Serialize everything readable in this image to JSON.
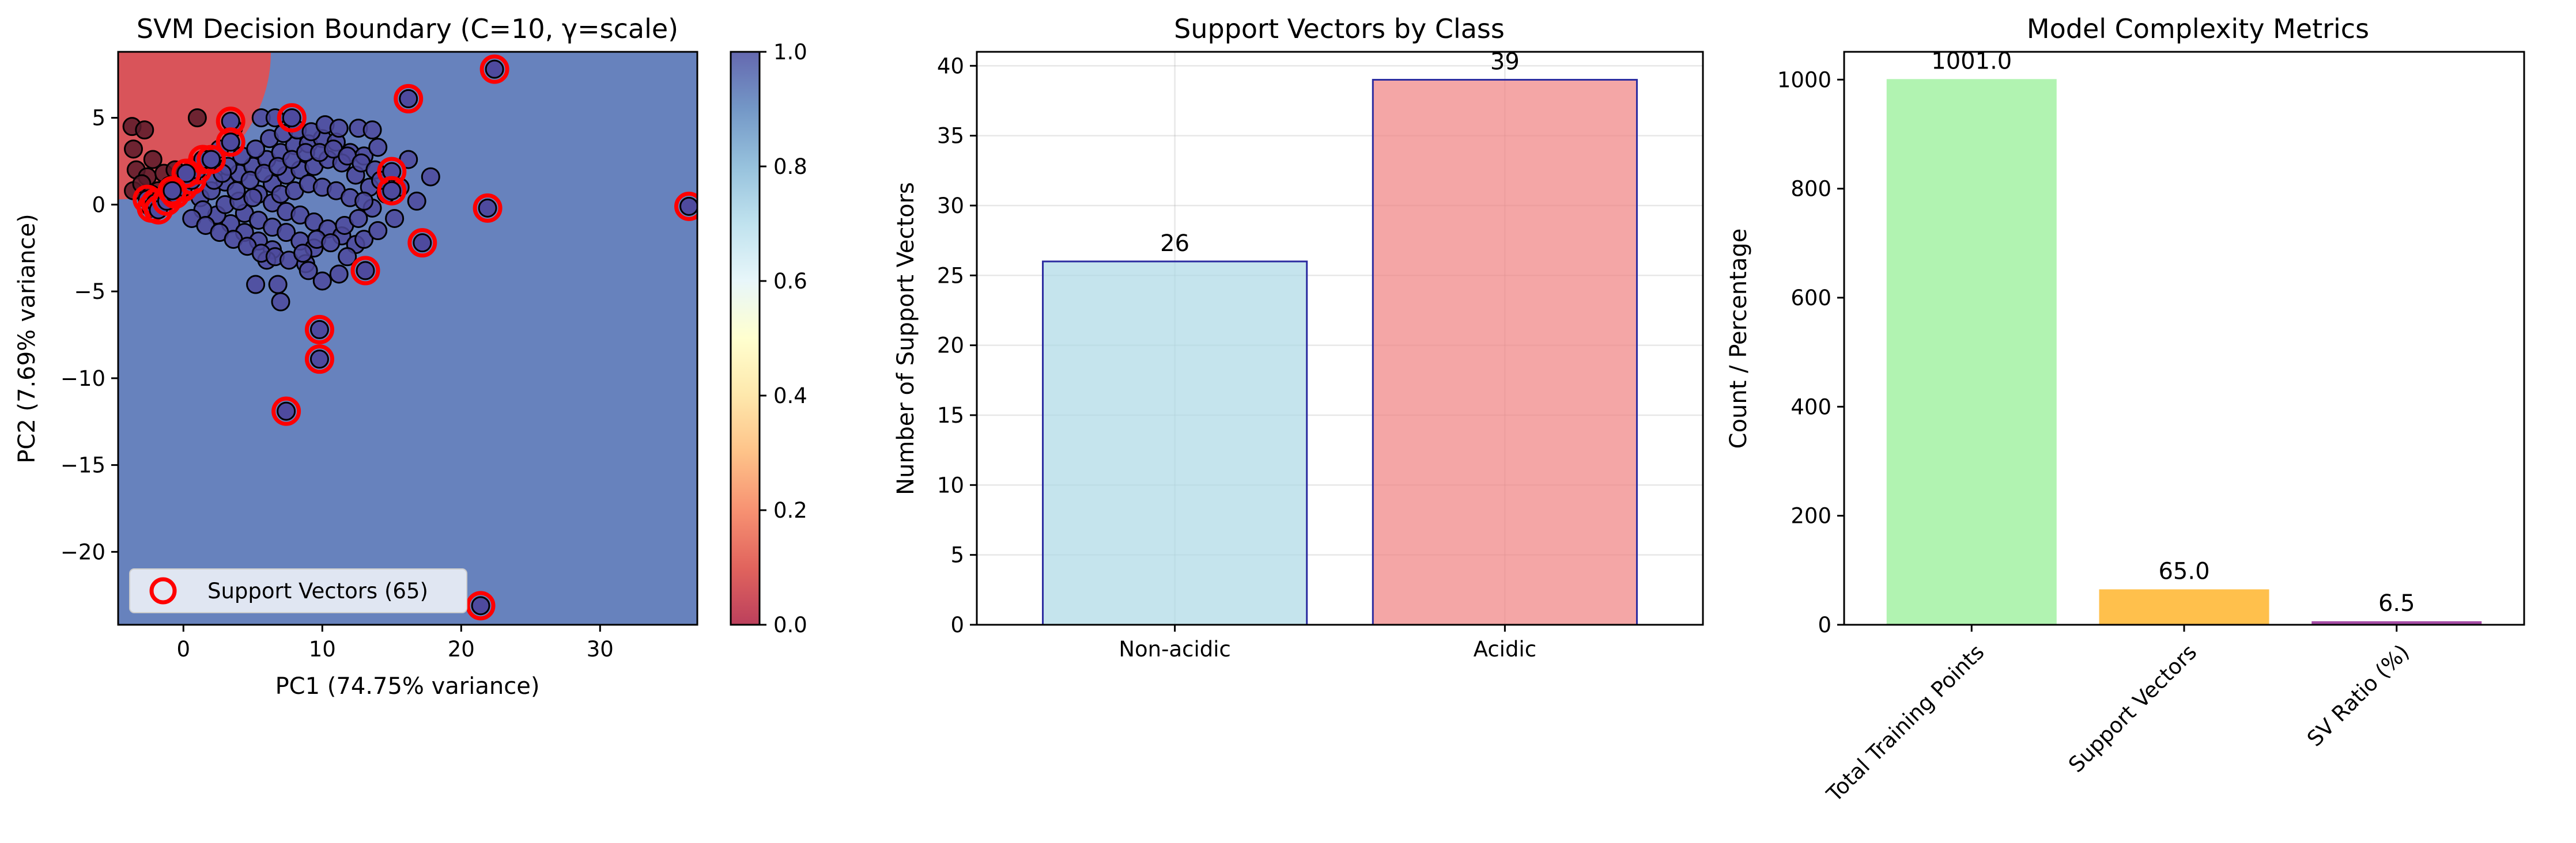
{
  "colors": {
    "region_acidic": "#d9545a",
    "region_non_acidic": "#6782bd",
    "point_fill": "#4e4a9e",
    "point_dark": "#5a1b2a",
    "support_vector_ring": "#ff0000",
    "bar_non_acidic": "#add8e6",
    "bar_acidic": "#f08080",
    "bar_edge": "#2b2ba0",
    "metric_total": "#90ee90",
    "metric_sv": "#ffa500",
    "metric_ratio": "#800080"
  },
  "chart_data": [
    {
      "type": "scatter",
      "title": "SVM Decision Boundary (C=10, γ=scale)",
      "xlabel": "PC1 (74.75% variance)",
      "ylabel": "PC2 (7.69% variance)",
      "xlim": [
        -4.7,
        37
      ],
      "ylim": [
        -24.2,
        8.8
      ],
      "xticks": [
        0,
        10,
        20,
        30
      ],
      "yticks": [
        -20,
        -15,
        -10,
        -5,
        0,
        5
      ],
      "colorbar": {
        "min": 0.0,
        "max": 1.0,
        "ticks": [
          "0.0",
          "0.2",
          "0.4",
          "0.6",
          "0.8",
          "1.0"
        ]
      },
      "legend": {
        "label": "Support Vectors (65)",
        "position": "lower-left"
      },
      "decision_region": {
        "acidic_corner": "top-left",
        "center": [
          -4.7,
          8.8
        ],
        "radius_x": 11,
        "radius_y": 8.5
      },
      "support_vectors": [
        [
          -2.6,
          0.3
        ],
        [
          -2.3,
          -0.2
        ],
        [
          -2.0,
          0.1
        ],
        [
          -1.8,
          -0.3
        ],
        [
          -1.2,
          0.2
        ],
        [
          -0.6,
          0.6
        ],
        [
          0.0,
          1.0
        ],
        [
          0.6,
          1.4
        ],
        [
          1.0,
          2.0
        ],
        [
          1.4,
          2.6
        ],
        [
          0.2,
          1.8
        ],
        [
          -0.8,
          0.8
        ],
        [
          2.0,
          2.6
        ],
        [
          3.4,
          4.8
        ],
        [
          3.4,
          3.6
        ],
        [
          7.8,
          5.0
        ],
        [
          16.2,
          6.1
        ],
        [
          22.4,
          7.8
        ],
        [
          15.0,
          1.9
        ],
        [
          15.0,
          0.8
        ],
        [
          21.9,
          -0.2
        ],
        [
          17.2,
          -2.2
        ],
        [
          13.1,
          -3.8
        ],
        [
          9.8,
          -7.2
        ],
        [
          9.8,
          -8.9
        ],
        [
          7.4,
          -11.9
        ],
        [
          21.4,
          -23.1
        ],
        [
          36.4,
          -0.1
        ]
      ],
      "scatter_points_acidic": [
        [
          -3.7,
          4.5
        ],
        [
          -3.6,
          3.2
        ],
        [
          -2.8,
          4.3
        ],
        [
          -3.4,
          2.0
        ],
        [
          -2.6,
          1.6
        ],
        [
          -3.6,
          0.8
        ],
        [
          -2.2,
          2.6
        ],
        [
          -1.8,
          0.8
        ],
        [
          -1.4,
          1.8
        ],
        [
          -0.6,
          2.0
        ],
        [
          1.0,
          5.0
        ],
        [
          -3.0,
          1.2
        ],
        [
          -1.0,
          1.1
        ],
        [
          -2.3,
          0.6
        ]
      ],
      "scatter_points_non_acidic": [
        [
          1.2,
          0.4
        ],
        [
          2.0,
          0.8
        ],
        [
          3.0,
          1.3
        ],
        [
          4.0,
          1.8
        ],
        [
          5.0,
          2.2
        ],
        [
          6.0,
          2.6
        ],
        [
          7.0,
          3.0
        ],
        [
          8.0,
          3.4
        ],
        [
          9.0,
          3.5
        ],
        [
          10.0,
          3.8
        ],
        [
          11.0,
          3.6
        ],
        [
          12.0,
          3.0
        ],
        [
          13.0,
          2.8
        ],
        [
          14.0,
          3.3
        ],
        [
          6.4,
          1.2
        ],
        [
          7.4,
          1.7
        ],
        [
          8.4,
          2.0
        ],
        [
          9.4,
          2.2
        ],
        [
          10.4,
          2.6
        ],
        [
          11.4,
          2.4
        ],
        [
          12.4,
          1.7
        ],
        [
          13.4,
          1.0
        ],
        [
          14.6,
          0.6
        ],
        [
          5.4,
          0.6
        ],
        [
          6.4,
          0.1
        ],
        [
          7.4,
          -0.4
        ],
        [
          8.4,
          -0.6
        ],
        [
          9.4,
          -1.0
        ],
        [
          10.4,
          -1.4
        ],
        [
          11.4,
          -1.8
        ],
        [
          12.4,
          -2.3
        ],
        [
          4.4,
          -0.5
        ],
        [
          5.4,
          -0.9
        ],
        [
          6.4,
          -1.3
        ],
        [
          7.4,
          -1.6
        ],
        [
          8.4,
          -2.1
        ],
        [
          9.4,
          -2.5
        ],
        [
          3.4,
          -1.1
        ],
        [
          4.4,
          -1.6
        ],
        [
          5.4,
          -2.1
        ],
        [
          6.4,
          -2.6
        ],
        [
          2.4,
          -0.6
        ],
        [
          1.4,
          -0.3
        ],
        [
          3.0,
          0.0
        ],
        [
          4.0,
          0.2
        ],
        [
          5.0,
          0.4
        ],
        [
          2.2,
          1.4
        ],
        [
          3.2,
          2.2
        ],
        [
          4.2,
          2.8
        ],
        [
          5.2,
          3.2
        ],
        [
          6.2,
          3.8
        ],
        [
          7.2,
          4.1
        ],
        [
          8.2,
          4.3
        ],
        [
          9.2,
          4.2
        ],
        [
          10.2,
          4.6
        ],
        [
          11.2,
          4.4
        ],
        [
          12.6,
          4.4
        ],
        [
          13.6,
          4.3
        ],
        [
          16.2,
          2.6
        ],
        [
          17.8,
          1.6
        ],
        [
          6.0,
          -3.2
        ],
        [
          5.2,
          -4.6
        ],
        [
          7.0,
          -5.6
        ],
        [
          10.0,
          -4.4
        ],
        [
          8.8,
          -3.4
        ],
        [
          11.8,
          -3.0
        ],
        [
          13.0,
          -2.0
        ],
        [
          14.0,
          -1.5
        ],
        [
          15.2,
          -0.8
        ],
        [
          2.8,
          1.8
        ],
        [
          3.8,
          0.8
        ],
        [
          4.8,
          1.4
        ],
        [
          5.8,
          1.8
        ],
        [
          6.8,
          2.2
        ],
        [
          7.8,
          2.6
        ],
        [
          8.8,
          3.0
        ],
        [
          9.8,
          3.0
        ],
        [
          10.8,
          3.2
        ],
        [
          11.8,
          2.8
        ],
        [
          12.8,
          2.4
        ],
        [
          13.8,
          2.0
        ],
        [
          0.6,
          -0.8
        ],
        [
          1.6,
          -1.2
        ],
        [
          2.6,
          -1.6
        ],
        [
          3.6,
          -2.0
        ],
        [
          4.6,
          -2.4
        ],
        [
          5.6,
          -2.8
        ],
        [
          6.6,
          -3.0
        ],
        [
          7.6,
          -3.2
        ],
        [
          8.6,
          -2.8
        ],
        [
          9.6,
          -2.0
        ],
        [
          10.6,
          -2.2
        ],
        [
          11.6,
          -1.2
        ],
        [
          12.6,
          -0.8
        ],
        [
          13.6,
          -0.2
        ],
        [
          14.2,
          1.4
        ],
        [
          15.6,
          1.0
        ],
        [
          16.8,
          0.2
        ],
        [
          7.0,
          0.6
        ],
        [
          8.0,
          0.8
        ],
        [
          9.0,
          1.2
        ],
        [
          10.0,
          1.0
        ],
        [
          11.0,
          0.8
        ],
        [
          12.0,
          0.4
        ],
        [
          13.0,
          0.2
        ],
        [
          5.6,
          5.0
        ],
        [
          6.6,
          5.0
        ],
        [
          3.6,
          4.4
        ],
        [
          2.6,
          3.2
        ],
        [
          1.6,
          2.6
        ],
        [
          6.8,
          -4.6
        ],
        [
          9.0,
          -3.8
        ],
        [
          11.2,
          -4.0
        ]
      ]
    },
    {
      "type": "bar",
      "title": "Support Vectors by Class",
      "xlabel": "",
      "ylabel": "Number of Support Vectors",
      "categories": [
        "Non-acidic",
        "Acidic"
      ],
      "values": [
        26,
        39
      ],
      "data_labels": [
        "26",
        "39"
      ],
      "ylim": [
        0,
        41
      ],
      "yticks": [
        0,
        5,
        10,
        15,
        20,
        25,
        30,
        35,
        40
      ],
      "grid": true
    },
    {
      "type": "bar",
      "title": "Model Complexity Metrics",
      "xlabel": "",
      "ylabel": "Count / Percentage",
      "categories": [
        "Total Training Points",
        "Support Vectors",
        "SV Ratio (%)"
      ],
      "values": [
        1001.0,
        65.0,
        6.5
      ],
      "data_labels": [
        "1001.0",
        "65.0",
        "6.5"
      ],
      "ylim": [
        0,
        1051
      ],
      "yticks": [
        0,
        200,
        400,
        600,
        800,
        1000
      ],
      "grid": false
    }
  ]
}
